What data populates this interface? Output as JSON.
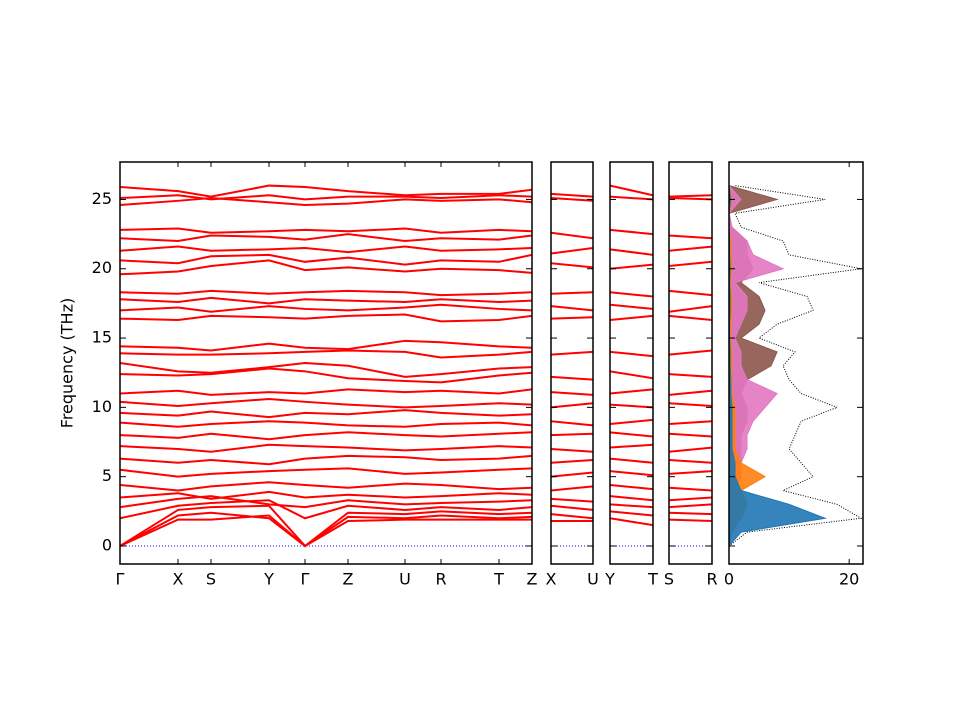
{
  "chart_data": {
    "type": "band_structure",
    "ylabel": "Frequency (THz)",
    "ylim": [
      -1.3,
      27.7
    ],
    "yticks": [
      0,
      5,
      10,
      15,
      20,
      25
    ],
    "color": "#ff0000",
    "reference_line": {
      "value": 0,
      "color": "#0000ff"
    },
    "panels": [
      {
        "xticks": [
          {
            "value": 0,
            "label": "Γ"
          },
          {
            "value": 0.58,
            "label": "X"
          },
          {
            "value": 0.91,
            "label": "S"
          },
          {
            "value": 1.49,
            "label": "Y"
          },
          {
            "value": 1.85,
            "label": "Γ"
          },
          {
            "value": 2.28,
            "label": "Z"
          },
          {
            "value": 2.85,
            "label": "U"
          },
          {
            "value": 3.21,
            "label": "R"
          },
          {
            "value": 3.79,
            "label": "T"
          },
          {
            "value": 4.12,
            "label": "Z"
          }
        ],
        "bands": [
          [
            0,
            1.9,
            1.9,
            2.2,
            0,
            1.8,
            1.9,
            1.9,
            1.9,
            1.9
          ],
          [
            0,
            2.2,
            2.4,
            2.0,
            0,
            2.1,
            2.0,
            2.2,
            2.0,
            2.1
          ],
          [
            0,
            2.6,
            2.8,
            2.9,
            0,
            2.4,
            2.3,
            2.5,
            2.3,
            2.4
          ],
          [
            2.0,
            2.9,
            3.1,
            3.3,
            2.0,
            2.9,
            2.6,
            2.8,
            2.6,
            2.8
          ],
          [
            2.8,
            3.4,
            3.6,
            3.0,
            2.8,
            3.3,
            3.0,
            3.1,
            3.2,
            3.3
          ],
          [
            3.5,
            3.8,
            3.4,
            3.9,
            3.5,
            3.7,
            3.5,
            3.6,
            3.8,
            3.7
          ],
          [
            4.4,
            4.0,
            4.3,
            4.6,
            4.4,
            4.2,
            4.5,
            4.4,
            4.1,
            4.2
          ],
          [
            5.5,
            5.0,
            5.2,
            5.4,
            5.5,
            5.6,
            5.2,
            5.3,
            5.5,
            5.6
          ],
          [
            6.3,
            6.0,
            6.2,
            5.9,
            6.3,
            6.5,
            6.4,
            6.2,
            6.3,
            6.5
          ],
          [
            7.2,
            7.0,
            6.8,
            7.3,
            7.2,
            7.1,
            6.9,
            7.0,
            7.2,
            7.1
          ],
          [
            8.0,
            7.8,
            8.1,
            7.7,
            8.0,
            8.2,
            8.0,
            7.9,
            8.1,
            8.2
          ],
          [
            8.9,
            8.6,
            8.8,
            9.0,
            8.9,
            8.7,
            8.6,
            8.8,
            8.9,
            8.7
          ],
          [
            9.6,
            9.4,
            9.7,
            9.3,
            9.6,
            9.5,
            9.8,
            9.6,
            9.4,
            9.5
          ],
          [
            10.4,
            10.1,
            10.3,
            10.6,
            10.4,
            10.2,
            10.0,
            10.1,
            10.3,
            10.2
          ],
          [
            11.0,
            11.2,
            10.9,
            11.1,
            11.0,
            11.3,
            11.1,
            11.2,
            11.0,
            11.3
          ],
          [
            12.4,
            12.3,
            12.4,
            12.8,
            12.6,
            12.1,
            11.9,
            11.8,
            12.3,
            12.5
          ],
          [
            13.2,
            12.6,
            12.5,
            12.9,
            13.2,
            13.0,
            12.2,
            12.4,
            12.8,
            12.9
          ],
          [
            13.9,
            13.8,
            13.8,
            13.9,
            14.0,
            14.1,
            14.0,
            13.6,
            13.8,
            14.0
          ],
          [
            14.4,
            14.3,
            14.1,
            14.6,
            14.3,
            14.2,
            14.8,
            14.7,
            14.4,
            14.3
          ],
          [
            16.4,
            16.3,
            16.6,
            16.5,
            16.4,
            16.6,
            16.7,
            16.2,
            16.3,
            16.6
          ],
          [
            17.0,
            17.2,
            16.9,
            17.3,
            17.1,
            17.0,
            17.2,
            17.4,
            17.1,
            17.0
          ],
          [
            17.8,
            17.6,
            17.9,
            17.5,
            17.8,
            17.7,
            17.6,
            17.8,
            17.6,
            17.7
          ],
          [
            18.3,
            18.2,
            18.4,
            18.2,
            18.3,
            18.4,
            18.3,
            18.1,
            18.2,
            18.3
          ],
          [
            19.6,
            19.8,
            20.2,
            20.6,
            19.9,
            20.1,
            19.8,
            20.0,
            19.9,
            19.7
          ],
          [
            20.6,
            20.4,
            20.9,
            21.0,
            20.5,
            20.8,
            20.3,
            20.6,
            20.5,
            21.0
          ],
          [
            21.3,
            21.6,
            21.3,
            21.4,
            21.5,
            21.2,
            21.6,
            21.3,
            21.4,
            21.5
          ],
          [
            22.2,
            22.0,
            22.4,
            22.3,
            22.1,
            22.5,
            22.0,
            22.2,
            22.1,
            22.4
          ],
          [
            22.8,
            22.9,
            22.6,
            22.7,
            22.8,
            22.7,
            22.9,
            22.6,
            22.8,
            22.7
          ],
          [
            24.6,
            24.9,
            25.1,
            24.8,
            24.6,
            24.7,
            25.0,
            24.9,
            25.0,
            24.8
          ],
          [
            25.1,
            25.3,
            25.0,
            25.3,
            25.0,
            25.2,
            25.2,
            25.1,
            25.3,
            25.2
          ],
          [
            25.9,
            25.6,
            25.2,
            26.0,
            25.9,
            25.6,
            25.3,
            25.4,
            25.4,
            25.7
          ]
        ]
      },
      {
        "xticks": [
          {
            "value": 0,
            "label": "X"
          },
          {
            "value": 0.42,
            "label": "U"
          }
        ],
        "bands": [
          [
            1.8,
            1.8
          ],
          [
            2.3,
            2.0
          ],
          [
            2.9,
            2.6
          ],
          [
            3.4,
            3.2
          ],
          [
            4.0,
            4.3
          ],
          [
            5.0,
            5.3
          ],
          [
            6.0,
            6.2
          ],
          [
            7.0,
            6.8
          ],
          [
            8.0,
            8.1
          ],
          [
            9.0,
            8.7
          ],
          [
            10.0,
            10.3
          ],
          [
            11.1,
            10.9
          ],
          [
            12.2,
            12.0
          ],
          [
            13.8,
            14.0
          ],
          [
            16.4,
            16.5
          ],
          [
            17.3,
            17.0
          ],
          [
            18.2,
            18.3
          ],
          [
            20.4,
            20.1
          ],
          [
            21.1,
            21.5
          ],
          [
            22.6,
            22.2
          ],
          [
            25.1,
            24.9
          ],
          [
            25.4,
            25.2
          ]
        ]
      },
      {
        "xticks": [
          {
            "value": 0,
            "label": "Y"
          },
          {
            "value": 0.43,
            "label": "T"
          }
        ],
        "bands": [
          [
            2.0,
            1.5
          ],
          [
            2.5,
            2.2
          ],
          [
            3.0,
            2.8
          ],
          [
            3.6,
            3.3
          ],
          [
            4.4,
            4.1
          ],
          [
            5.4,
            5.1
          ],
          [
            6.3,
            6.0
          ],
          [
            7.1,
            7.3
          ],
          [
            8.2,
            7.9
          ],
          [
            8.8,
            9.1
          ],
          [
            10.2,
            10.0
          ],
          [
            11.0,
            11.3
          ],
          [
            12.6,
            12.1
          ],
          [
            14.0,
            13.7
          ],
          [
            16.3,
            16.6
          ],
          [
            17.4,
            17.1
          ],
          [
            18.3,
            18.0
          ],
          [
            20.0,
            20.3
          ],
          [
            21.4,
            21.0
          ],
          [
            22.8,
            22.5
          ],
          [
            25.2,
            25.0
          ],
          [
            26.0,
            25.3
          ]
        ]
      },
      {
        "xticks": [
          {
            "value": 0,
            "label": "S"
          },
          {
            "value": 0.43,
            "label": "R"
          }
        ],
        "bands": [
          [
            1.9,
            1.8
          ],
          [
            2.4,
            2.3
          ],
          [
            2.8,
            3.0
          ],
          [
            3.3,
            3.5
          ],
          [
            4.2,
            4.0
          ],
          [
            5.2,
            5.4
          ],
          [
            6.2,
            6.0
          ],
          [
            6.8,
            7.1
          ],
          [
            8.1,
            7.9
          ],
          [
            8.8,
            9.0
          ],
          [
            10.3,
            10.1
          ],
          [
            10.9,
            11.2
          ],
          [
            12.4,
            12.2
          ],
          [
            13.8,
            14.1
          ],
          [
            16.6,
            16.3
          ],
          [
            16.9,
            17.3
          ],
          [
            18.4,
            18.1
          ],
          [
            20.2,
            20.5
          ],
          [
            21.3,
            21.6
          ],
          [
            22.4,
            22.2
          ],
          [
            25.1,
            25.0
          ],
          [
            25.2,
            25.3
          ]
        ]
      }
    ],
    "dos": {
      "xlim": [
        0,
        22.3
      ],
      "xticks": [
        0,
        20
      ],
      "frequencies": [
        0,
        1,
        2,
        3,
        4,
        5,
        6,
        7,
        8,
        9,
        10,
        11,
        12,
        13,
        14,
        15,
        16,
        17,
        18,
        19,
        20,
        21,
        22,
        23,
        24,
        25,
        26
      ],
      "total": {
        "color": "#000000",
        "values": [
          0,
          3,
          22,
          18,
          9,
          14,
          12,
          10,
          11,
          12,
          18,
          12,
          10,
          9,
          11,
          5,
          8,
          14,
          13,
          5,
          22,
          10,
          9,
          2,
          1,
          16,
          1
        ]
      },
      "series": [
        {
          "color": "#8c564b",
          "values": [
            0,
            0.2,
            0.5,
            1,
            1,
            2,
            2,
            2,
            2,
            3,
            3,
            2,
            3,
            7,
            8,
            2,
            5,
            6,
            5,
            2,
            4,
            3,
            3,
            0.5,
            0,
            8,
            0
          ]
        },
        {
          "color": "#e377c2",
          "values": [
            0,
            0.2,
            1,
            1,
            1,
            2,
            2,
            3,
            3,
            4,
            6,
            8,
            3,
            2,
            2,
            1,
            2,
            3,
            3,
            1,
            9,
            4,
            3,
            0.5,
            0,
            2,
            0
          ]
        },
        {
          "color": "#ff7f0e",
          "values": [
            0,
            0.5,
            2,
            3,
            2,
            6,
            2,
            1,
            1,
            1,
            1,
            0.5,
            0.5,
            0.5,
            0.5,
            0.2,
            0.3,
            0.5,
            0.5,
            0.2,
            0.5,
            0.3,
            0.3,
            0,
            0,
            0.5,
            0
          ]
        },
        {
          "color": "#1f77b4",
          "values": [
            0,
            2,
            16,
            10,
            2,
            1,
            1,
            0.5,
            0.5,
            0.5,
            0.5,
            0.3,
            0.3,
            0.2,
            0.2,
            0.1,
            0.1,
            0.2,
            0.2,
            0.1,
            0.2,
            0.1,
            0.1,
            0,
            0,
            0.3,
            0
          ]
        }
      ]
    }
  }
}
